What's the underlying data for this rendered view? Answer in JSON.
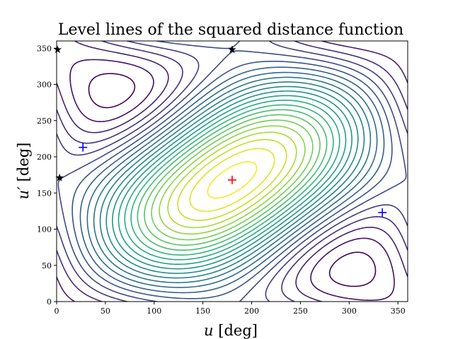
{
  "chart_data": {
    "type": "contour",
    "title": "Level lines of the squared distance function",
    "xlabel_var": "u",
    "xlabel_unit": " [deg]",
    "ylabel_var": "u′",
    "ylabel_unit": " [deg]",
    "xlim": [
      0,
      360
    ],
    "ylim": [
      0,
      360
    ],
    "xticks": [
      0,
      50,
      100,
      150,
      200,
      250,
      300,
      350
    ],
    "yticks": [
      0,
      50,
      100,
      150,
      200,
      250,
      300,
      350
    ],
    "colormap": "viridis",
    "contour_levels": 24,
    "grid": false,
    "legend": "none",
    "markers": {
      "maximum": [
        {
          "x": 180,
          "y": 168,
          "symbol": "+",
          "color": "#ff0000"
        }
      ],
      "minima": [
        {
          "x": 27,
          "y": 213,
          "symbol": "+",
          "color": "#0000ff"
        },
        {
          "x": 334,
          "y": 123,
          "symbol": "+",
          "color": "#0000ff"
        }
      ],
      "saddles": [
        {
          "x": 1,
          "y": 348,
          "symbol": "star",
          "color": "#000000"
        },
        {
          "x": 180,
          "y": 348,
          "symbol": "star",
          "color": "#000000"
        },
        {
          "x": 3,
          "y": 171,
          "symbol": "star",
          "color": "#000000"
        }
      ]
    }
  }
}
